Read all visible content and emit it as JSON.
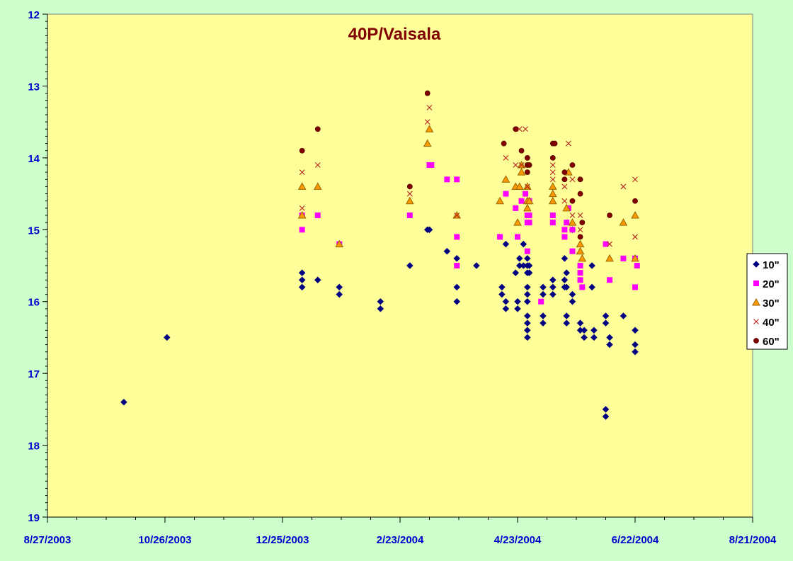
{
  "chart_data": {
    "type": "scatter",
    "title": "40P/Vaisala",
    "xlabel": "",
    "ylabel": "",
    "x_axis_type": "date",
    "xlim": [
      "2003-08-27",
      "2004-08-21"
    ],
    "x_ticks": [
      "8/27/2003",
      "10/26/2003",
      "12/25/2003",
      "2/23/2004",
      "4/23/2004",
      "6/22/2004",
      "8/21/2004"
    ],
    "ylim": [
      19,
      12
    ],
    "y_inverted": true,
    "y_ticks": [
      "12",
      "13",
      "14",
      "15",
      "16",
      "17",
      "18",
      "19"
    ],
    "grid": false,
    "legend_position": "right",
    "plot_background": "#ffff99",
    "page_background": "#ccffcc",
    "series": [
      {
        "name": "10\"",
        "marker": "diamond",
        "color": "#000080",
        "points": [
          [
            "2003-10-05",
            17.4
          ],
          [
            "2003-10-27",
            16.5
          ],
          [
            "2004-01-04",
            15.6
          ],
          [
            "2004-01-04",
            15.7
          ],
          [
            "2004-01-04",
            15.8
          ],
          [
            "2004-01-12",
            15.7
          ],
          [
            "2004-01-23",
            15.8
          ],
          [
            "2004-01-23",
            15.9
          ],
          [
            "2004-02-13",
            16.0
          ],
          [
            "2004-02-13",
            16.1
          ],
          [
            "2004-02-28",
            15.5
          ],
          [
            "2004-03-08",
            15.0
          ],
          [
            "2004-03-09",
            15.0
          ],
          [
            "2004-03-18",
            15.3
          ],
          [
            "2004-03-23",
            15.4
          ],
          [
            "2004-03-23",
            15.8
          ],
          [
            "2004-03-23",
            16.0
          ],
          [
            "2004-03-33",
            15.5
          ],
          [
            "2004-04-15",
            15.8
          ],
          [
            "2004-04-15",
            15.9
          ],
          [
            "2004-04-17",
            15.2
          ],
          [
            "2004-04-17",
            16.0
          ],
          [
            "2004-04-17",
            16.1
          ],
          [
            "2004-04-22",
            15.6
          ],
          [
            "2004-04-23",
            16.0
          ],
          [
            "2004-04-23",
            16.1
          ],
          [
            "2004-04-24",
            15.4
          ],
          [
            "2004-04-24",
            15.5
          ],
          [
            "2004-04-26",
            15.2
          ],
          [
            "2004-04-26",
            15.5
          ],
          [
            "2004-04-28",
            15.4
          ],
          [
            "2004-04-28",
            15.5
          ],
          [
            "2004-04-28",
            15.6
          ],
          [
            "2004-04-28",
            15.8
          ],
          [
            "2004-04-28",
            15.9
          ],
          [
            "2004-04-28",
            16.0
          ],
          [
            "2004-04-28",
            16.2
          ],
          [
            "2004-04-28",
            16.3
          ],
          [
            "2004-04-28",
            16.4
          ],
          [
            "2004-04-28",
            16.5
          ],
          [
            "2004-04-29",
            15.5
          ],
          [
            "2004-04-29",
            15.6
          ],
          [
            "2004-05-06",
            15.8
          ],
          [
            "2004-05-06",
            15.9
          ],
          [
            "2004-05-06",
            16.2
          ],
          [
            "2004-05-06",
            16.3
          ],
          [
            "2004-05-11",
            15.7
          ],
          [
            "2004-05-11",
            15.8
          ],
          [
            "2004-05-11",
            15.9
          ],
          [
            "2004-05-17",
            15.4
          ],
          [
            "2004-05-17",
            15.7
          ],
          [
            "2004-05-17",
            15.8
          ],
          [
            "2004-05-18",
            15.6
          ],
          [
            "2004-05-18",
            15.8
          ],
          [
            "2004-05-18",
            16.2
          ],
          [
            "2004-05-18",
            16.3
          ],
          [
            "2004-05-21",
            15.0
          ],
          [
            "2004-05-21",
            15.9
          ],
          [
            "2004-05-21",
            16.0
          ],
          [
            "2004-05-25",
            16.3
          ],
          [
            "2004-05-25",
            16.4
          ],
          [
            "2004-05-27",
            16.4
          ],
          [
            "2004-05-27",
            16.5
          ],
          [
            "2004-05-31",
            15.5
          ],
          [
            "2004-05-31",
            15.8
          ],
          [
            "2004-06-01",
            16.4
          ],
          [
            "2004-06-01",
            16.5
          ],
          [
            "2004-06-07",
            16.2
          ],
          [
            "2004-06-07",
            16.3
          ],
          [
            "2004-06-07",
            17.5
          ],
          [
            "2004-06-07",
            17.6
          ],
          [
            "2004-06-09",
            16.5
          ],
          [
            "2004-06-09",
            16.6
          ],
          [
            "2004-06-16",
            16.2
          ],
          [
            "2004-06-22",
            16.4
          ],
          [
            "2004-06-22",
            16.6
          ],
          [
            "2004-06-22",
            16.7
          ]
        ]
      },
      {
        "name": "20\"",
        "marker": "square",
        "color": "#ff00ff",
        "points": [
          [
            "2004-01-04",
            14.8
          ],
          [
            "2004-01-04",
            15.0
          ],
          [
            "2004-01-12",
            14.8
          ],
          [
            "2004-01-23",
            15.2
          ],
          [
            "2004-02-28",
            14.8
          ],
          [
            "2004-03-09",
            14.1
          ],
          [
            "2004-03-10",
            14.1
          ],
          [
            "2004-03-18",
            14.3
          ],
          [
            "2004-03-23",
            14.3
          ],
          [
            "2004-03-23",
            15.1
          ],
          [
            "2004-03-23",
            15.5
          ],
          [
            "2004-04-14",
            15.1
          ],
          [
            "2004-04-17",
            14.5
          ],
          [
            "2004-04-22",
            14.7
          ],
          [
            "2004-04-23",
            15.1
          ],
          [
            "2004-04-25",
            14.6
          ],
          [
            "2004-04-27",
            14.5
          ],
          [
            "2004-04-28",
            14.8
          ],
          [
            "2004-04-28",
            14.9
          ],
          [
            "2004-04-28",
            15.3
          ],
          [
            "2004-04-29",
            14.6
          ],
          [
            "2004-04-29",
            14.8
          ],
          [
            "2004-04-29",
            14.9
          ],
          [
            "2004-05-05",
            16.0
          ],
          [
            "2004-05-11",
            14.8
          ],
          [
            "2004-05-11",
            14.9
          ],
          [
            "2004-05-17",
            15.0
          ],
          [
            "2004-05-17",
            15.1
          ],
          [
            "2004-05-18",
            14.9
          ],
          [
            "2004-05-19",
            14.7
          ],
          [
            "2004-05-21",
            15.0
          ],
          [
            "2004-05-21",
            15.3
          ],
          [
            "2004-05-25",
            15.5
          ],
          [
            "2004-05-25",
            15.6
          ],
          [
            "2004-05-25",
            15.7
          ],
          [
            "2004-05-26",
            15.8
          ],
          [
            "2004-06-07",
            15.2
          ],
          [
            "2004-06-09",
            15.7
          ],
          [
            "2004-06-16",
            15.4
          ],
          [
            "2004-06-22",
            15.4
          ],
          [
            "2004-06-22",
            15.8
          ],
          [
            "2004-06-23",
            15.5
          ]
        ]
      },
      {
        "name": "30\"",
        "marker": "triangle",
        "color": "#ff9900",
        "points": [
          [
            "2004-01-04",
            14.4
          ],
          [
            "2004-01-04",
            14.8
          ],
          [
            "2004-01-12",
            14.4
          ],
          [
            "2004-01-23",
            15.2
          ],
          [
            "2004-02-28",
            14.6
          ],
          [
            "2004-03-08",
            13.8
          ],
          [
            "2004-03-09",
            13.6
          ],
          [
            "2004-03-23",
            14.8
          ],
          [
            "2004-04-14",
            14.6
          ],
          [
            "2004-04-17",
            14.3
          ],
          [
            "2004-04-22",
            14.4
          ],
          [
            "2004-04-23",
            14.9
          ],
          [
            "2004-04-24",
            14.4
          ],
          [
            "2004-04-25",
            14.1
          ],
          [
            "2004-04-25",
            14.2
          ],
          [
            "2004-04-28",
            14.4
          ],
          [
            "2004-04-28",
            14.6
          ],
          [
            "2004-04-28",
            14.7
          ],
          [
            "2004-04-29",
            14.6
          ],
          [
            "2004-05-11",
            14.4
          ],
          [
            "2004-05-11",
            14.5
          ],
          [
            "2004-05-11",
            14.6
          ],
          [
            "2004-05-18",
            14.7
          ],
          [
            "2004-05-19",
            14.2
          ],
          [
            "2004-05-21",
            14.9
          ],
          [
            "2004-05-25",
            15.2
          ],
          [
            "2004-05-25",
            15.3
          ],
          [
            "2004-05-26",
            15.4
          ],
          [
            "2004-06-09",
            15.4
          ],
          [
            "2004-06-16",
            14.9
          ],
          [
            "2004-06-22",
            14.8
          ],
          [
            "2004-06-22",
            15.4
          ]
        ]
      },
      {
        "name": "40\"",
        "marker": "x",
        "color": "#b22222",
        "points": [
          [
            "2004-01-04",
            14.2
          ],
          [
            "2004-01-04",
            14.7
          ],
          [
            "2004-01-12",
            14.1
          ],
          [
            "2004-02-28",
            14.5
          ],
          [
            "2004-03-08",
            13.5
          ],
          [
            "2004-03-09",
            13.3
          ],
          [
            "2004-03-23",
            14.8
          ],
          [
            "2004-04-17",
            14.0
          ],
          [
            "2004-04-22",
            14.1
          ],
          [
            "2004-04-24",
            13.6
          ],
          [
            "2004-04-25",
            14.1
          ],
          [
            "2004-04-27",
            13.6
          ],
          [
            "2004-04-28",
            14.1
          ],
          [
            "2004-04-28",
            14.4
          ],
          [
            "2004-05-11",
            14.1
          ],
          [
            "2004-05-11",
            14.2
          ],
          [
            "2004-05-11",
            14.3
          ],
          [
            "2004-05-17",
            14.4
          ],
          [
            "2004-05-17",
            14.6
          ],
          [
            "2004-05-19",
            13.8
          ],
          [
            "2004-05-21",
            14.3
          ],
          [
            "2004-05-21",
            14.8
          ],
          [
            "2004-05-25",
            14.8
          ],
          [
            "2004-05-25",
            15.0
          ],
          [
            "2004-06-09",
            15.2
          ],
          [
            "2004-06-16",
            14.4
          ],
          [
            "2004-06-22",
            14.3
          ],
          [
            "2004-06-22",
            15.1
          ]
        ]
      },
      {
        "name": "60\"",
        "marker": "circle",
        "color": "#800000",
        "points": [
          [
            "2004-01-04",
            13.9
          ],
          [
            "2004-01-12",
            13.6
          ],
          [
            "2004-02-28",
            14.4
          ],
          [
            "2004-03-08",
            13.1
          ],
          [
            "2004-04-16",
            13.8
          ],
          [
            "2004-04-22",
            13.6
          ],
          [
            "2004-04-25",
            13.9
          ],
          [
            "2004-04-28",
            14.0
          ],
          [
            "2004-04-28",
            14.1
          ],
          [
            "2004-04-28",
            14.2
          ],
          [
            "2004-04-29",
            14.1
          ],
          [
            "2004-05-11",
            13.8
          ],
          [
            "2004-05-11",
            14.0
          ],
          [
            "2004-05-12",
            13.8
          ],
          [
            "2004-05-17",
            14.2
          ],
          [
            "2004-05-17",
            14.3
          ],
          [
            "2004-05-21",
            14.1
          ],
          [
            "2004-05-21",
            14.6
          ],
          [
            "2004-05-25",
            14.3
          ],
          [
            "2004-05-25",
            14.5
          ],
          [
            "2004-05-25",
            15.1
          ],
          [
            "2004-05-26",
            14.9
          ],
          [
            "2004-06-09",
            14.8
          ],
          [
            "2004-06-22",
            14.6
          ]
        ]
      }
    ]
  }
}
